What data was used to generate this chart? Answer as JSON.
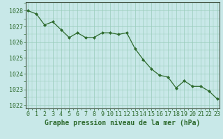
{
  "x": [
    0,
    1,
    2,
    3,
    4,
    5,
    6,
    7,
    8,
    9,
    10,
    11,
    12,
    13,
    14,
    15,
    16,
    17,
    18,
    19,
    20,
    21,
    22,
    23
  ],
  "y": [
    1028.0,
    1027.8,
    1027.1,
    1027.3,
    1026.8,
    1026.3,
    1026.6,
    1026.3,
    1026.3,
    1026.6,
    1026.6,
    1026.5,
    1026.6,
    1025.6,
    1024.9,
    1024.3,
    1023.9,
    1023.8,
    1023.1,
    1023.55,
    1023.2,
    1023.2,
    1022.9,
    1022.4
  ],
  "ylim_bottom": 1021.8,
  "ylim_top": 1028.55,
  "yticks": [
    1022,
    1023,
    1024,
    1025,
    1026,
    1027,
    1028
  ],
  "xticks": [
    0,
    1,
    2,
    3,
    4,
    5,
    6,
    7,
    8,
    9,
    10,
    11,
    12,
    13,
    14,
    15,
    16,
    17,
    18,
    19,
    20,
    21,
    22,
    23
  ],
  "xlabel": "Graphe pression niveau de la mer (hPa)",
  "line_color": "#2d6a2d",
  "marker_color": "#2d6a2d",
  "bg_color": "#c8e8e8",
  "grid_color": "#99ccbb",
  "tick_label_color": "#2d6a2d",
  "xlabel_fontsize": 7.0,
  "tick_fontsize": 6.0,
  "marker": "D",
  "markersize": 2.0,
  "linewidth": 0.9
}
